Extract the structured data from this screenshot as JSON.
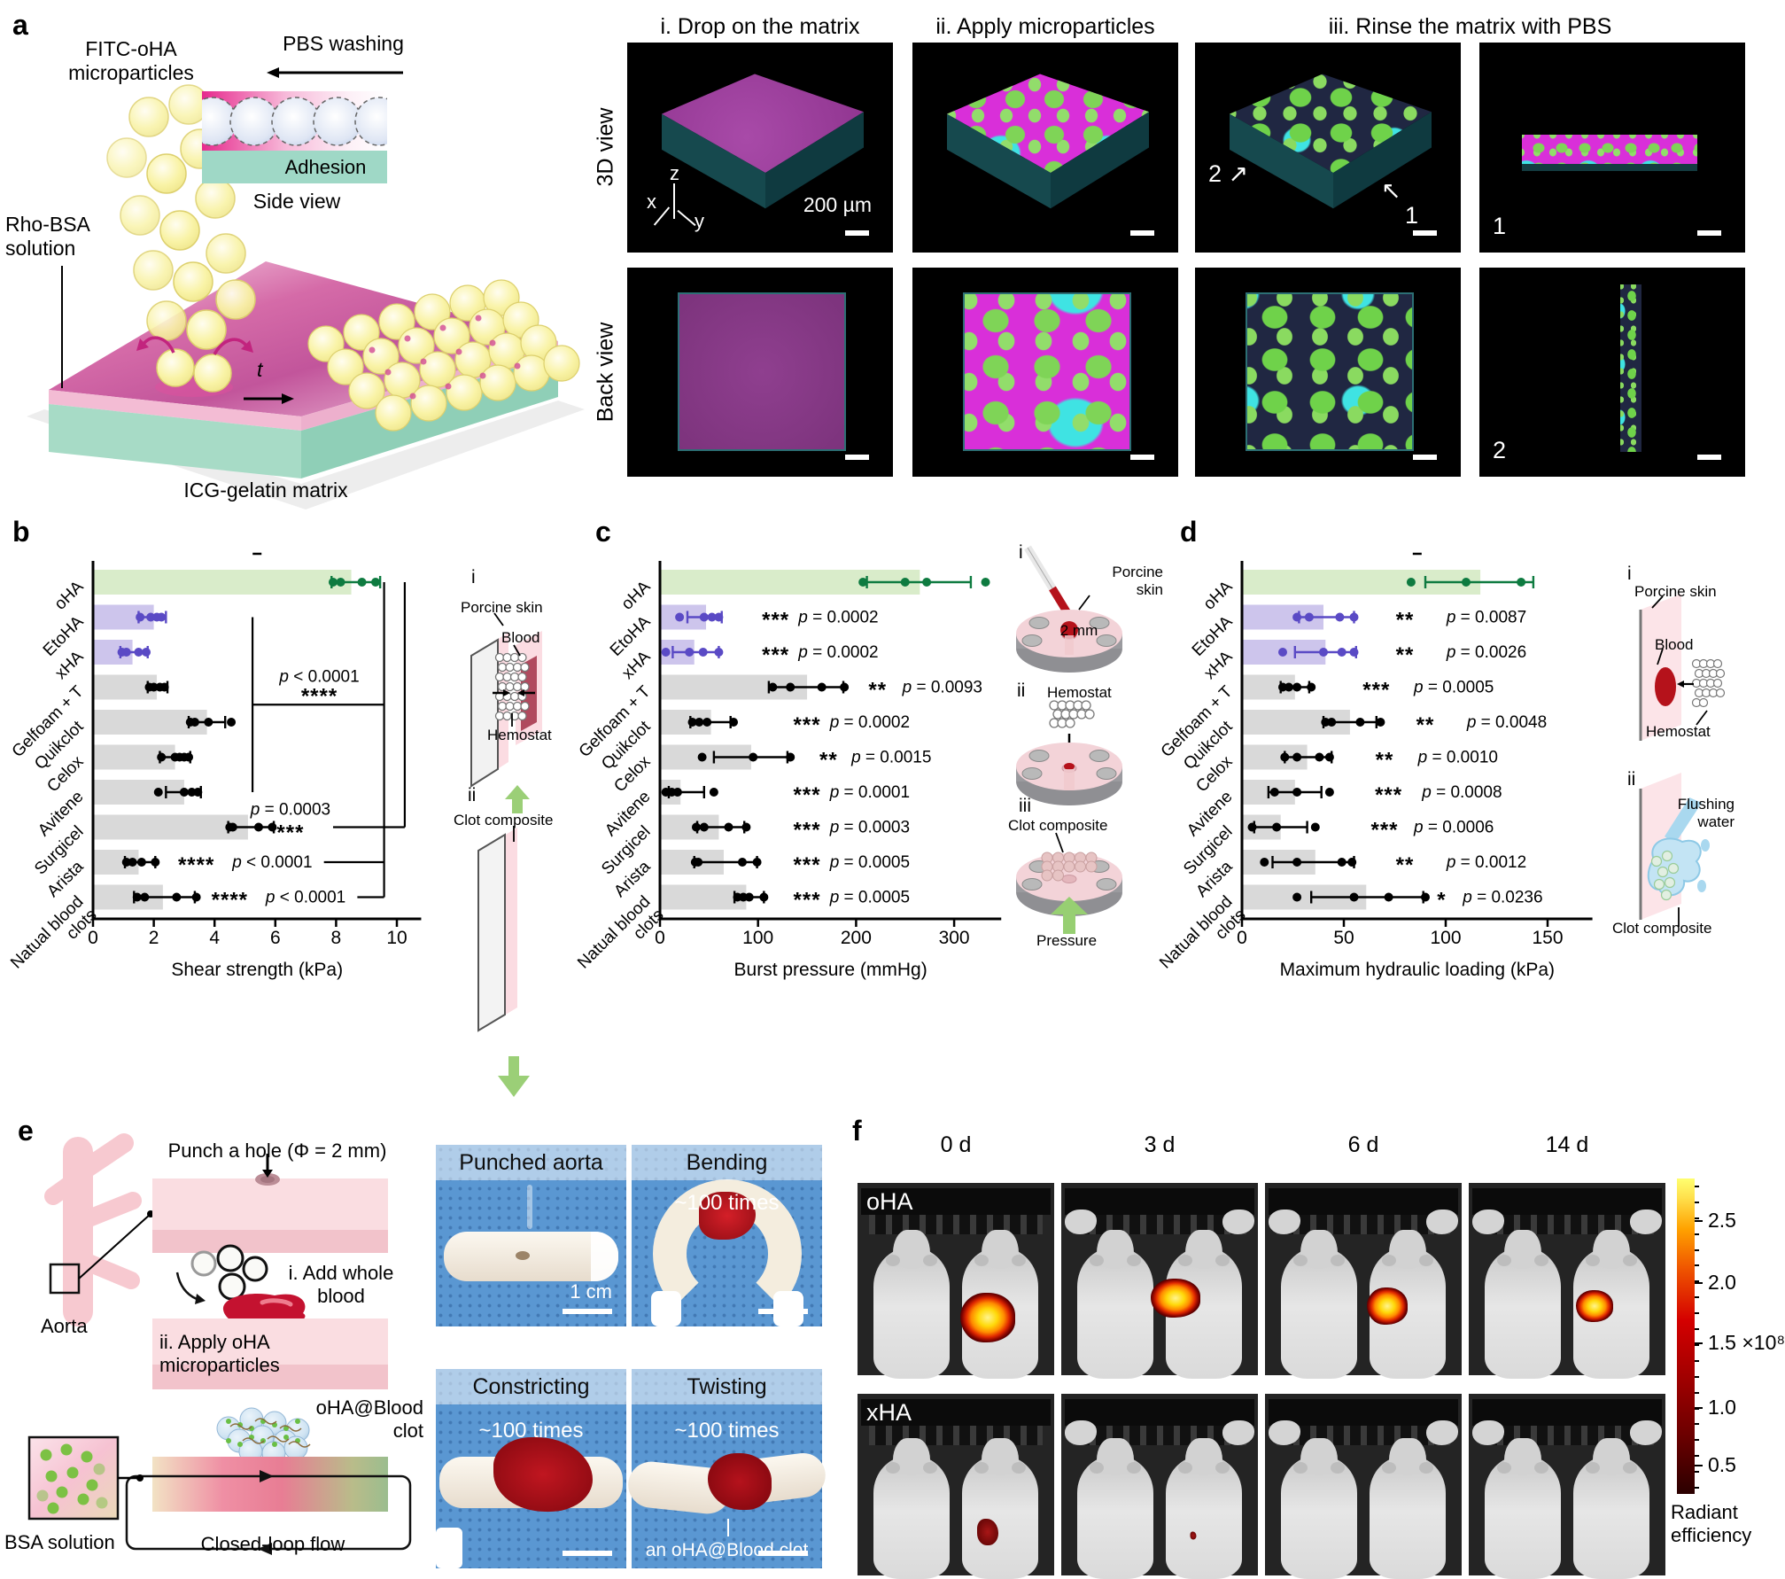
{
  "figure_labels": {
    "a": "a",
    "b": "b",
    "c": "c",
    "d": "d",
    "e": "e",
    "f": "f"
  },
  "panel_a": {
    "fitc": "FITC-oHA\nmicroparticles",
    "pbs": "PBS washing",
    "adhesion": "Adhesion",
    "side_view": "Side view",
    "rho": "Rho-BSA\nsolution",
    "t_label": "t",
    "icg": "ICG-gelatin matrix",
    "micro_titles": [
      "i. Drop on the matrix",
      "ii. Apply microparticles",
      "iii. Rinse the matrix with PBS"
    ],
    "row_labels": [
      "3D view",
      "Back view"
    ],
    "scale_bar": "200 µm",
    "axis_x": "x",
    "axis_y": "y",
    "axis_z": "z",
    "marker_1": "1",
    "marker_2": "2",
    "arrow_marker_2": "2 ↗",
    "arrow_marker_1": "↖",
    "arrow_marker_1b": "1"
  },
  "chart_data": [
    {
      "type": "bar",
      "orientation": "horizontal",
      "xlabel": "Shear strength (kPa)",
      "xlim": [
        0,
        10.8
      ],
      "xticks": [
        0,
        2,
        4,
        6,
        8,
        10
      ],
      "dash": true,
      "palette": {
        "green_bar": "#d9ecca",
        "green_dot": "#0e7b40",
        "purple_bar": "#cdc5ec",
        "purple_dot": "#5a4ac5",
        "gray_bar": "#d9d9d9",
        "black_dot": "#000000"
      },
      "rows": [
        {
          "label": "oHA",
          "color": "green",
          "bar": 8.5,
          "dots": [
            7.9,
            8.15,
            8.85,
            9.3
          ],
          "err": [
            7.85,
            9.45
          ]
        },
        {
          "label": "EtoHA",
          "color": "purple",
          "bar": 2.0,
          "dots": [
            1.55,
            1.9,
            2.1,
            2.25
          ],
          "err": [
            1.5,
            2.4
          ]
        },
        {
          "label": "xHA",
          "color": "purple",
          "bar": 1.3,
          "dots": [
            0.95,
            1.1,
            1.5,
            1.75
          ],
          "err": [
            0.9,
            1.8
          ]
        },
        {
          "label": "Gelfoam + T",
          "color": "gray",
          "bar": 2.1,
          "dots": [
            1.85,
            2.0,
            2.2,
            2.35
          ],
          "err": [
            1.8,
            2.45
          ]
        },
        {
          "label": "Quikclot",
          "color": "gray",
          "bar": 3.75,
          "dots": [
            3.2,
            3.35,
            3.8,
            4.55
          ],
          "err": [
            3.15,
            4.35
          ]
        },
        {
          "label": "Celox",
          "color": "gray",
          "bar": 2.7,
          "dots": [
            2.25,
            2.7,
            2.85,
            3.0,
            3.15
          ],
          "err": [
            2.2,
            3.2
          ]
        },
        {
          "label": "Avitene",
          "color": "gray",
          "bar": 3.0,
          "dots": [
            2.15,
            3.0,
            3.25,
            3.45
          ],
          "err": [
            2.4,
            3.55
          ]
        },
        {
          "label": "Surgicel",
          "color": "gray",
          "bar": 5.1,
          "dots": [
            4.5,
            4.6,
            5.45,
            5.9
          ],
          "err": [
            4.45,
            5.95
          ],
          "stars": "***",
          "p": "p = 0.0003",
          "style": "stacked",
          "ann_x": 6.5,
          "line": [
            7.9,
            10.26
          ]
        },
        {
          "label": "Arista",
          "color": "gray",
          "bar": 1.5,
          "dots": [
            1.1,
            1.3,
            1.6,
            2.05
          ],
          "err": [
            1.05,
            2.05
          ],
          "stars": "****",
          "p": "p < 0.0001",
          "stars_x": 3.4,
          "p_x": 5.9,
          "line": [
            7.6,
            9.58
          ]
        },
        {
          "label": "Natual blood\nclots",
          "color": "gray",
          "bar": 2.3,
          "dots": [
            1.45,
            1.7,
            2.75,
            3.4
          ],
          "err": [
            1.35,
            3.35
          ],
          "stars": "****",
          "p": "p < 0.0001",
          "stars_x": 4.5,
          "p_x": 7.0,
          "line": [
            8.7,
            9.58
          ]
        }
      ],
      "brackets": [
        {
          "type": "v",
          "x": 5.25,
          "r1": 1,
          "r2": 6
        },
        {
          "type": "h",
          "row": 3.5,
          "x1": 5.25,
          "x2": 9.58
        },
        {
          "type": "v",
          "x": 9.58,
          "r1": 0,
          "r2": 9
        },
        {
          "type": "v",
          "x": 10.26,
          "r1": 0,
          "r2": 7
        }
      ],
      "bracket_label": {
        "p": "p < 0.0001",
        "stars": "****",
        "x": 7.45,
        "row": 3.5
      }
    },
    {
      "type": "bar",
      "orientation": "horizontal",
      "xlabel": "Burst pressure (mmHg)",
      "xlim": [
        0,
        348
      ],
      "xticks": [
        0,
        100,
        200,
        300
      ],
      "dash": false,
      "rows": [
        {
          "label": "oHA",
          "color": "green",
          "bar": 265,
          "dots": [
            207,
            250,
            272,
            332
          ],
          "err": [
            211,
            317
          ]
        },
        {
          "label": "EtoHA",
          "color": "purple",
          "bar": 47,
          "dots": [
            20,
            45,
            53,
            60
          ],
          "err": [
            28,
            63
          ],
          "stars": "***",
          "p": "p = 0.0002",
          "stars_x": 118,
          "p_x": 182
        },
        {
          "label": "xHA",
          "color": "purple",
          "bar": 35,
          "dots": [
            6,
            30,
            44,
            60
          ],
          "err": [
            13,
            60
          ],
          "stars": "***",
          "p": "p = 0.0002",
          "stars_x": 118,
          "p_x": 182
        },
        {
          "label": "Gelfoam + T",
          "color": "gray",
          "bar": 150,
          "dots": [
            115,
            133,
            165,
            188
          ],
          "err": [
            111,
            187
          ],
          "stars": "**",
          "p": "p = 0.0093",
          "stars_x": 222,
          "p_x": 288
        },
        {
          "label": "Quikclot",
          "color": "gray",
          "bar": 52,
          "dots": [
            33,
            40,
            48,
            75
          ],
          "err": [
            31,
            72
          ],
          "stars": "***",
          "p": "p = 0.0002",
          "stars_x": 150,
          "p_x": 214
        },
        {
          "label": "Celox",
          "color": "gray",
          "bar": 93,
          "dots": [
            43,
            95,
            133
          ],
          "err": [
            55,
            130
          ],
          "stars": "**",
          "p": "p = 0.0015",
          "stars_x": 172,
          "p_x": 236
        },
        {
          "label": "Avitene",
          "color": "gray",
          "bar": 21,
          "dots": [
            6,
            12,
            18,
            55
          ],
          "err": [
            9,
            45
          ],
          "stars": "***",
          "p": "p = 0.0001",
          "stars_x": 150,
          "p_x": 214
        },
        {
          "label": "Surgicel",
          "color": "gray",
          "bar": 60,
          "dots": [
            37,
            45,
            70,
            88
          ],
          "err": [
            38,
            86
          ],
          "stars": "***",
          "p": "p = 0.0003",
          "stars_x": 150,
          "p_x": 214
        },
        {
          "label": "Arista",
          "color": "gray",
          "bar": 65,
          "dots": [
            36,
            39,
            84,
            99
          ],
          "err": [
            35,
            99
          ],
          "stars": "***",
          "p": "p = 0.0005",
          "stars_x": 150,
          "p_x": 214
        },
        {
          "label": "Natual blood\nclots",
          "color": "gray",
          "bar": 88,
          "dots": [
            79,
            85,
            91,
            106
          ],
          "err": [
            76,
            106
          ],
          "stars": "***",
          "p": "p = 0.0005",
          "stars_x": 150,
          "p_x": 214
        }
      ]
    },
    {
      "type": "bar",
      "orientation": "horizontal",
      "xlabel": "Maximum hydraulic loading  (kPa)",
      "xlim": [
        0,
        172
      ],
      "xticks": [
        0,
        50,
        100,
        150
      ],
      "dash": true,
      "rows": [
        {
          "label": "oHA",
          "color": "green",
          "bar": 117,
          "dots": [
            83,
            110,
            137
          ],
          "err": [
            90,
            143
          ]
        },
        {
          "label": "EtoHA",
          "color": "purple",
          "bar": 40,
          "dots": [
            27,
            33,
            48,
            55
          ],
          "err": [
            28,
            55
          ],
          "stars": "**",
          "p": "p = 0.0087",
          "stars_x": 80,
          "p_x": 120
        },
        {
          "label": "xHA",
          "color": "purple",
          "bar": 41,
          "dots": [
            20,
            40,
            49,
            55
          ],
          "err": [
            26,
            56
          ],
          "stars": "**",
          "p": "p = 0.0026",
          "stars_x": 80,
          "p_x": 120
        },
        {
          "label": "Gelfoam + T",
          "color": "gray",
          "bar": 26,
          "dots": [
            20,
            23,
            27,
            34
          ],
          "err": [
            19,
            33
          ],
          "stars": "***",
          "p": "p = 0.0005",
          "stars_x": 66,
          "p_x": 104
        },
        {
          "label": "Quikclot",
          "color": "gray",
          "bar": 53,
          "dots": [
            41,
            44,
            58,
            68
          ],
          "err": [
            40,
            66
          ],
          "stars": "**",
          "p": "p = 0.0048",
          "stars_x": 90,
          "p_x": 130
        },
        {
          "label": "Celox",
          "color": "gray",
          "bar": 32,
          "dots": [
            21,
            27,
            38,
            43
          ],
          "err": [
            21,
            44
          ],
          "stars": "**",
          "p": "p = 0.0010",
          "stars_x": 70,
          "p_x": 106
        },
        {
          "label": "Avitene",
          "color": "gray",
          "bar": 26,
          "dots": [
            16,
            27,
            43
          ],
          "err": [
            13,
            39
          ],
          "stars": "***",
          "p": "p = 0.0008",
          "stars_x": 72,
          "p_x": 108
        },
        {
          "label": "Surgicel",
          "color": "gray",
          "bar": 19,
          "dots": [
            5,
            17,
            36
          ],
          "err": [
            6,
            32
          ],
          "stars": "***",
          "p": "p = 0.0006",
          "stars_x": 70,
          "p_x": 104
        },
        {
          "label": "Arista",
          "color": "gray",
          "bar": 36,
          "dots": [
            11,
            27,
            49,
            54
          ],
          "err": [
            15,
            55
          ],
          "stars": "**",
          "p": "p = 0.0012",
          "stars_x": 80,
          "p_x": 120
        },
        {
          "label": "Natual blood\nclots",
          "color": "gray",
          "bar": 61,
          "dots": [
            27,
            55,
            72,
            90
          ],
          "err": [
            34,
            89
          ],
          "stars": "*",
          "p": "p = 0.0236",
          "stars_x": 98,
          "p_x": 128
        }
      ]
    }
  ],
  "inset_b": {
    "i": "i",
    "ii": "ii",
    "porcine": "Porcine skin",
    "blood": "Blood",
    "hemostat": "Hemostat",
    "clot": "Clot composite"
  },
  "inset_c": {
    "i": "i",
    "ii": "ii",
    "iii": "iii",
    "porcine": "Porcine\nskin",
    "two_mm": "2 mm",
    "hemostat": "Hemostat",
    "clot": "Clot composite",
    "pressure": "Pressure"
  },
  "inset_d": {
    "i": "i",
    "ii": "ii",
    "porcine": "Porcine skin",
    "blood": "Blood",
    "hemostat": "Hemostat",
    "flushing": "Flushing\nwater",
    "clot": "Clot composite"
  },
  "panel_e": {
    "punch": "Punch a hole (Φ = 2 mm)",
    "aorta": "Aorta",
    "step_i": "i. Add whole\nblood",
    "step_ii": "ii. Apply oHA\nmicroparticles",
    "clot": "oHA@Blood\nclot",
    "bsa": "BSA solution",
    "loop": "Closed-loop flow",
    "photos": [
      {
        "title": "Punched aorta",
        "note": "",
        "scale": "1 cm"
      },
      {
        "title": "Bending",
        "note": "~100 times"
      },
      {
        "title": "Constricting",
        "note": "~100 times"
      },
      {
        "title": "Twisting",
        "note": "~100 times",
        "caption": "an oHA@Blood clot"
      }
    ]
  },
  "panel_f": {
    "timepoints": [
      "0 d",
      "3 d",
      "6 d",
      "14 d"
    ],
    "rows": [
      {
        "label": "oHA",
        "signals": [
          "large",
          "medium",
          "small",
          "small2"
        ]
      },
      {
        "label": "xHA",
        "signals": [
          "darksmall",
          "dot",
          "none",
          "none"
        ]
      }
    ],
    "colorbar": {
      "ticks": [
        "2.5",
        "2.0",
        "1.5",
        "1.0",
        "0.5"
      ],
      "multiplier": "×10⁸",
      "label": "Radiant\nefficiency"
    }
  }
}
